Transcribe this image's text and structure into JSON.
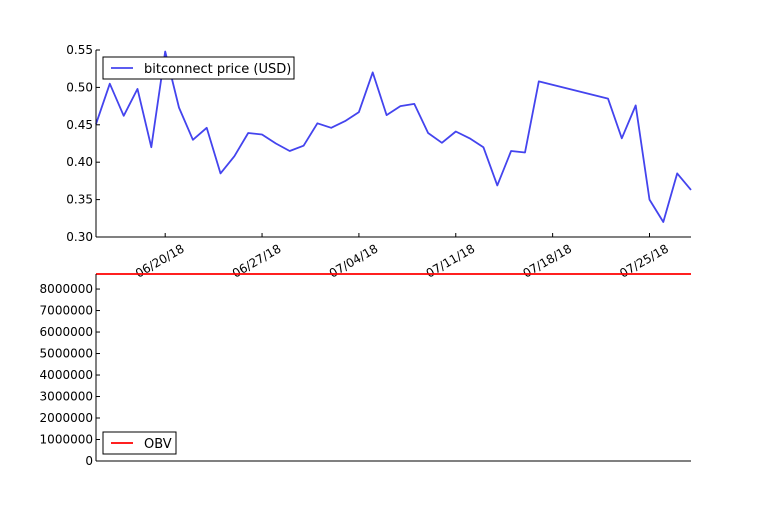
{
  "chart_data": [
    {
      "type": "line",
      "series": [
        {
          "name": "bitconnect price (USD)",
          "color": "#4444ee",
          "x": [
            "2018-06-15",
            "2018-06-16",
            "2018-06-17",
            "2018-06-18",
            "2018-06-19",
            "2018-06-20",
            "2018-06-21",
            "2018-06-22",
            "2018-06-23",
            "2018-06-24",
            "2018-06-25",
            "2018-06-26",
            "2018-06-27",
            "2018-06-28",
            "2018-06-29",
            "2018-06-30",
            "2018-07-01",
            "2018-07-02",
            "2018-07-03",
            "2018-07-04",
            "2018-07-05",
            "2018-07-06",
            "2018-07-07",
            "2018-07-08",
            "2018-07-09",
            "2018-07-10",
            "2018-07-11",
            "2018-07-12",
            "2018-07-13",
            "2018-07-14",
            "2018-07-15",
            "2018-07-16",
            "2018-07-17",
            "2018-07-22",
            "2018-07-23",
            "2018-07-24",
            "2018-07-25",
            "2018-07-26",
            "2018-07-27",
            "2018-07-28"
          ],
          "y": [
            0.451,
            0.505,
            0.462,
            0.498,
            0.42,
            0.548,
            0.473,
            0.43,
            0.446,
            0.385,
            0.408,
            0.439,
            0.437,
            0.425,
            0.415,
            0.422,
            0.452,
            0.446,
            0.455,
            0.467,
            0.52,
            0.463,
            0.475,
            0.478,
            0.439,
            0.426,
            0.441,
            0.432,
            0.42,
            0.369,
            0.415,
            0.413,
            0.508,
            0.485,
            0.432,
            0.476,
            0.35,
            0.32,
            0.385,
            0.363
          ]
        }
      ],
      "x_ticks": [
        "06/20/18",
        "06/27/18",
        "07/04/18",
        "07/11/18",
        "07/18/18",
        "07/25/18"
      ],
      "x_tick_dates": [
        "2018-06-20",
        "2018-06-27",
        "2018-07-04",
        "2018-07-11",
        "2018-07-18",
        "2018-07-25"
      ],
      "xlim": [
        "2018-06-15",
        "2018-07-28"
      ],
      "ylim": [
        0.3,
        0.55
      ],
      "y_ticks": [
        "0.30",
        "0.35",
        "0.40",
        "0.45",
        "0.50",
        "0.55"
      ],
      "y_tick_values": [
        0.3,
        0.35,
        0.4,
        0.45,
        0.5,
        0.55
      ],
      "legend_position": "upper-left",
      "grid": false
    },
    {
      "type": "line",
      "series": [
        {
          "name": "OBV",
          "color": "#ff0000",
          "x": [
            "2018-06-15",
            "2018-07-28"
          ],
          "y": [
            8700000,
            8700000
          ]
        }
      ],
      "xlim": [
        "2018-06-15",
        "2018-07-28"
      ],
      "ylim": [
        0,
        8700000
      ],
      "y_ticks": [
        "0",
        "1000000",
        "2000000",
        "3000000",
        "4000000",
        "5000000",
        "6000000",
        "7000000",
        "8000000"
      ],
      "y_tick_values": [
        0,
        1000000,
        2000000,
        3000000,
        4000000,
        5000000,
        6000000,
        7000000,
        8000000
      ],
      "legend_position": "lower-left",
      "grid": false
    }
  ]
}
